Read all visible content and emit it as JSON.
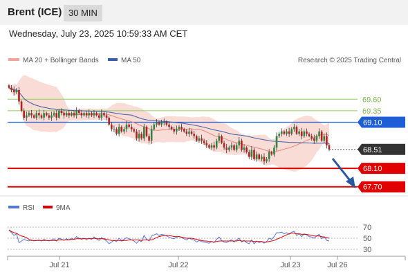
{
  "header": {
    "instrument": "Brent (ICE)",
    "timeframe": "30 MIN"
  },
  "datetime": "Wednesday, July 23, 2025 10:59:33 AM CET",
  "copyright": "Research © 2025 Trading Central",
  "legend": {
    "bb": "MA 20 + Bollinger Bands",
    "ma50": "MA 50",
    "rsi": "RSI",
    "rsi_ma": "9MA"
  },
  "colors": {
    "up": "#2e8540",
    "down": "#b22222",
    "bb_band": "#f8d3cc",
    "ma20": "#e8857a",
    "ma50": "#3b5fa8",
    "resistance": "#8ccf5a",
    "pivot": "#1e5fd8",
    "support": "#e00000",
    "current": "#333333",
    "arrow": "#2a57a0",
    "rsi": "#5577dd",
    "rsi_ma": "#dd0000"
  },
  "chart_data": [
    {
      "type": "candlestick",
      "x_ticks": [
        "Jul 21",
        "Jul 22",
        "Jul 23",
        "Jul 26"
      ],
      "y_range": [
        67.5,
        70.25
      ],
      "levels": [
        {
          "label": "69.60",
          "value": 69.6,
          "kind": "resistance"
        },
        {
          "label": "69.35",
          "value": 69.35,
          "kind": "resistance"
        },
        {
          "label": "69.10",
          "value": 69.1,
          "kind": "pivot"
        },
        {
          "label": "68.51",
          "value": 68.51,
          "kind": "current"
        },
        {
          "label": "68.10",
          "value": 68.1,
          "kind": "support"
        },
        {
          "label": "67.70",
          "value": 67.7,
          "kind": "support"
        }
      ],
      "close": [
        69.85,
        69.8,
        69.75,
        69.8,
        69.55,
        69.35,
        69.2,
        69.25,
        69.3,
        69.25,
        69.2,
        69.3,
        69.25,
        69.2,
        69.3,
        69.25,
        69.2,
        69.25,
        69.3,
        69.2,
        69.35,
        69.3,
        69.25,
        69.3,
        69.25,
        69.3,
        69.25,
        69.35,
        69.3,
        69.25,
        69.3,
        69.25,
        69.3,
        69.25,
        69.3,
        69.25,
        69.2,
        69.3,
        69.25,
        69.2,
        69.05,
        68.95,
        68.95,
        68.85,
        69.0,
        68.9,
        68.95,
        69.05,
        69.0,
        68.95,
        68.9,
        68.75,
        68.85,
        68.75,
        69.0,
        68.8,
        68.7,
        68.95,
        69.05,
        69.1,
        69.05,
        69.1,
        69.1,
        69.05,
        69.0,
        68.95,
        68.9,
        68.95,
        69.0,
        68.95,
        68.9,
        68.85,
        68.9,
        68.85,
        68.8,
        68.7,
        68.75,
        68.7,
        68.65,
        68.6,
        68.55,
        68.6,
        68.55,
        68.7,
        68.8,
        68.65,
        68.55,
        68.5,
        68.55,
        68.6,
        68.5,
        68.6,
        68.7,
        68.5,
        68.55,
        68.45,
        68.35,
        68.5,
        68.3,
        68.4,
        68.3,
        68.35,
        68.25,
        68.3,
        68.45,
        68.4,
        68.55,
        68.8,
        68.85,
        68.9,
        68.85,
        68.9,
        68.85,
        68.95,
        69.0,
        68.85,
        68.9,
        68.8,
        68.9,
        68.85,
        68.8,
        68.75,
        68.7,
        68.8,
        68.9,
        68.7,
        68.8,
        68.6,
        68.51
      ]
    },
    {
      "type": "line",
      "name": "RSI",
      "y_ticks": [
        70,
        50,
        30
      ],
      "y_range": [
        15,
        90
      ],
      "rsi": [
        65,
        60,
        55,
        58,
        42,
        45,
        48,
        46,
        45,
        47,
        45,
        46,
        47,
        45,
        48,
        46,
        45,
        47,
        49,
        45,
        50,
        48,
        46,
        49,
        47,
        50,
        48,
        53,
        50,
        48,
        50,
        48,
        50,
        48,
        52,
        49,
        46,
        51,
        48,
        45,
        40,
        43,
        46,
        44,
        50,
        46,
        48,
        51,
        49,
        47,
        45,
        41,
        46,
        44,
        55,
        48,
        45,
        54,
        56,
        58,
        55,
        57,
        56,
        54,
        52,
        50,
        49,
        52,
        53,
        51,
        49,
        47,
        50,
        48,
        47,
        43,
        46,
        44,
        43,
        42,
        41,
        44,
        42,
        48,
        52,
        46,
        43,
        42,
        45,
        47,
        43,
        47,
        50,
        43,
        46,
        42,
        40,
        47,
        40,
        45,
        42,
        44,
        41,
        44,
        50,
        48,
        53,
        60,
        60,
        61,
        58,
        60,
        57,
        61,
        62,
        55,
        58,
        53,
        58,
        56,
        53,
        52,
        50,
        54,
        57,
        49,
        53,
        46,
        45
      ],
      "ma9": [
        65,
        62,
        60,
        59,
        56,
        54,
        53,
        51,
        48,
        46,
        46,
        46,
        46,
        46,
        46,
        46,
        46,
        46,
        46,
        46,
        47,
        47,
        47,
        47,
        47,
        48,
        48,
        49,
        49,
        49,
        49,
        49,
        49,
        49,
        50,
        49,
        49,
        49,
        49,
        48,
        47,
        46,
        46,
        46,
        46,
        45,
        46,
        46,
        47,
        47,
        47,
        47,
        47,
        46,
        47,
        47,
        47,
        47,
        49,
        51,
        53,
        54,
        55,
        55,
        55,
        54,
        53,
        53,
        53,
        52,
        51,
        50,
        50,
        50,
        49,
        48,
        47,
        46,
        45,
        45,
        44,
        44,
        43,
        44,
        45,
        45,
        45,
        45,
        45,
        45,
        45,
        45,
        46,
        45,
        45,
        45,
        45,
        45,
        44,
        44,
        44,
        44,
        43,
        43,
        44,
        45,
        46,
        48,
        50,
        52,
        54,
        56,
        58,
        59,
        59,
        58,
        58,
        57,
        57,
        57,
        56,
        55,
        54,
        54,
        54,
        53,
        52,
        51,
        50
      ]
    }
  ]
}
